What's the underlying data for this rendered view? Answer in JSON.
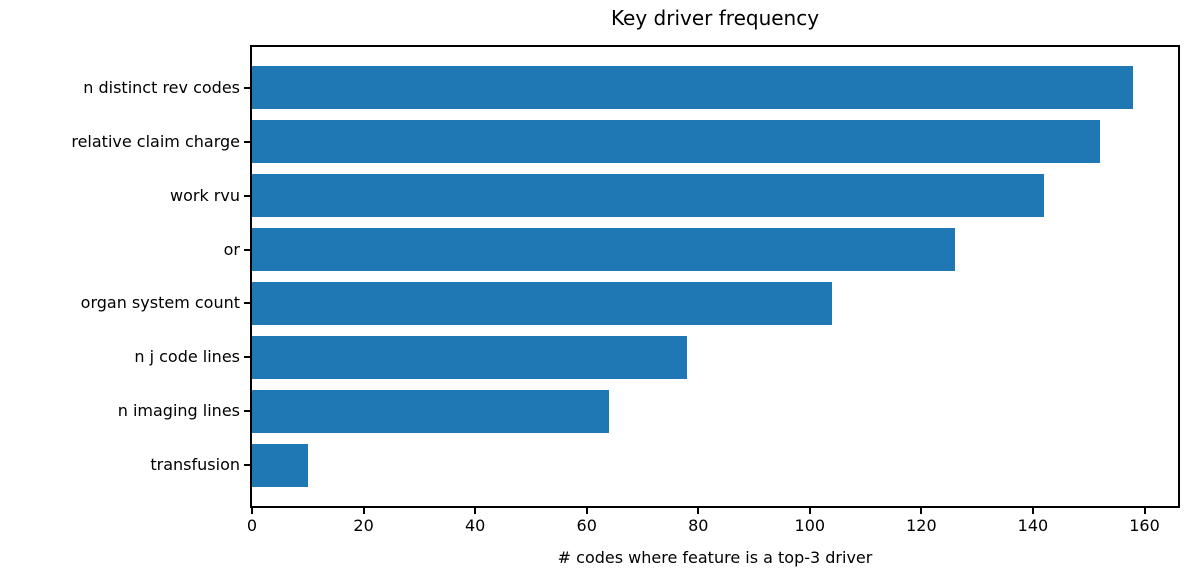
{
  "figure": {
    "title": "Key driver frequency"
  },
  "chart_data": {
    "type": "bar",
    "orientation": "horizontal",
    "title": "Key driver frequency",
    "categories": [
      "n distinct rev codes",
      "relative claim charge",
      "work rvu",
      "or",
      "organ system count",
      "n j code lines",
      "n imaging lines",
      "transfusion"
    ],
    "values": [
      158,
      152,
      142,
      126,
      104,
      78,
      64,
      10
    ],
    "xlabel": "# codes where feature is a top-3 driver",
    "ylabel": "",
    "xlim": [
      0,
      166
    ],
    "xticks": [
      0,
      20,
      40,
      60,
      80,
      100,
      120,
      140,
      160
    ],
    "bar_color": "#1f77b4",
    "axis_color": "#000000",
    "text_color": "#000000",
    "background_color": "#ffffff",
    "grid": false,
    "legend": "none",
    "bar_height_fraction": 0.8
  }
}
